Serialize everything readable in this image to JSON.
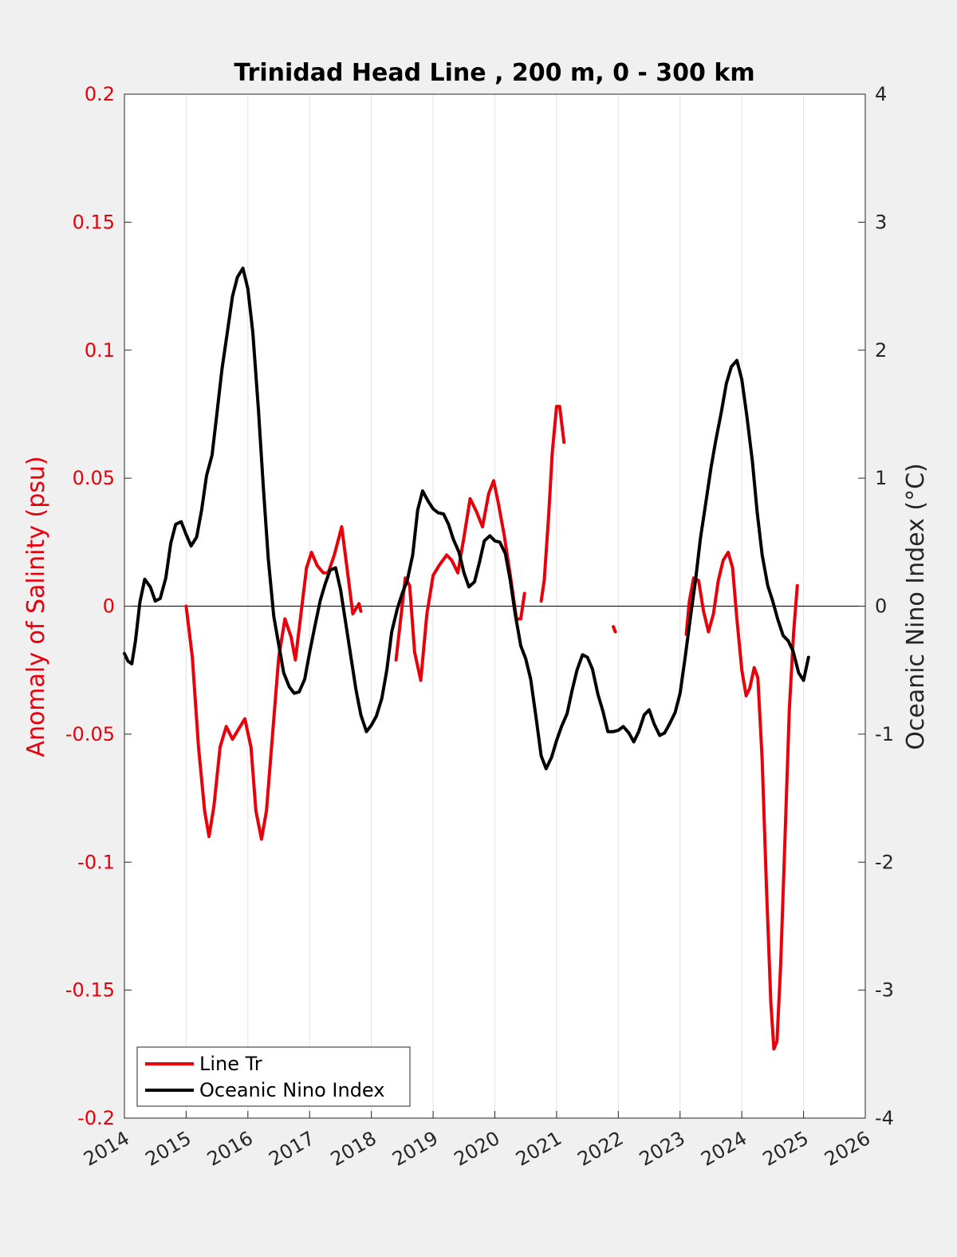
{
  "chart_data": {
    "type": "line",
    "title": "Trinidad Head Line , 200 m, 0 - 300 km",
    "ylabel_left": "Anomaly of Salinity (psu)",
    "ylabel_right": "Oceanic Nino Index (°C)",
    "xlim": [
      2014,
      2026
    ],
    "ylim_left": [
      -0.2,
      0.2
    ],
    "ylim_right": [
      -4,
      4
    ],
    "x_ticks": [
      "2014",
      "2015",
      "2016",
      "2017",
      "2018",
      "2019",
      "2020",
      "2021",
      "2022",
      "2023",
      "2024",
      "2025",
      "2026"
    ],
    "y_left_ticks": [
      "0.2",
      "0.15",
      "0.1",
      "0.05",
      "0",
      "-0.05",
      "-0.1",
      "-0.15",
      "-0.2"
    ],
    "y_right_ticks": [
      "4",
      "3",
      "2",
      "1",
      "0",
      "-1",
      "-2",
      "-3",
      "-4"
    ],
    "grid": "vertical",
    "legend_location": "bottom-left",
    "colors": {
      "salinity": "#e8000b",
      "oni": "#000000",
      "left_axis": "#e8000b",
      "right_axis": "#262626"
    },
    "series": [
      {
        "name": "Line Tr",
        "axis": "left",
        "color": "#e8000b",
        "segments": [
          [
            [
              2015.0,
              0.0
            ],
            [
              2015.1,
              -0.02
            ],
            [
              2015.2,
              -0.055
            ],
            [
              2015.3,
              -0.08
            ],
            [
              2015.37,
              -0.09
            ],
            [
              2015.45,
              -0.078
            ],
            [
              2015.55,
              -0.055
            ],
            [
              2015.65,
              -0.047
            ],
            [
              2015.75,
              -0.052
            ],
            [
              2015.85,
              -0.048
            ],
            [
              2015.95,
              -0.044
            ],
            [
              2016.05,
              -0.055
            ],
            [
              2016.13,
              -0.08
            ],
            [
              2016.22,
              -0.091
            ],
            [
              2016.3,
              -0.08
            ],
            [
              2016.4,
              -0.05
            ],
            [
              2016.5,
              -0.02
            ],
            [
              2016.6,
              -0.005
            ],
            [
              2016.7,
              -0.012
            ],
            [
              2016.77,
              -0.021
            ],
            [
              2016.85,
              -0.005
            ],
            [
              2016.95,
              0.015
            ],
            [
              2017.03,
              0.021
            ],
            [
              2017.12,
              0.016
            ],
            [
              2017.22,
              0.013
            ],
            [
              2017.3,
              0.013
            ],
            [
              2017.4,
              0.02
            ],
            [
              2017.52,
              0.031
            ],
            [
              2017.6,
              0.016
            ],
            [
              2017.7,
              -0.003
            ],
            [
              2017.8,
              0.001
            ],
            [
              2017.83,
              -0.002
            ]
          ],
          [
            [
              2018.4,
              -0.021
            ],
            [
              2018.48,
              -0.004
            ],
            [
              2018.55,
              0.011
            ],
            [
              2018.62,
              0.008
            ],
            [
              2018.7,
              -0.018
            ],
            [
              2018.8,
              -0.029
            ],
            [
              2018.9,
              -0.003
            ],
            [
              2019.0,
              0.012
            ],
            [
              2019.1,
              0.016
            ],
            [
              2019.22,
              0.02
            ],
            [
              2019.3,
              0.018
            ],
            [
              2019.4,
              0.013
            ],
            [
              2019.5,
              0.027
            ],
            [
              2019.6,
              0.042
            ],
            [
              2019.7,
              0.037
            ],
            [
              2019.8,
              0.031
            ],
            [
              2019.9,
              0.044
            ],
            [
              2019.98,
              0.049
            ],
            [
              2020.05,
              0.041
            ],
            [
              2020.15,
              0.028
            ],
            [
              2020.25,
              0.012
            ],
            [
              2020.35,
              -0.005
            ],
            [
              2020.42,
              -0.005
            ],
            [
              2020.48,
              0.005
            ]
          ],
          [
            [
              2020.75,
              0.002
            ],
            [
              2020.8,
              0.01
            ],
            [
              2020.87,
              0.035
            ],
            [
              2020.93,
              0.06
            ],
            [
              2021.0,
              0.078
            ],
            [
              2021.05,
              0.078
            ],
            [
              2021.12,
              0.064
            ]
          ],
          [
            [
              2021.92,
              -0.008
            ],
            [
              2021.95,
              -0.01
            ]
          ],
          [
            [
              2023.1,
              -0.011
            ],
            [
              2023.15,
              0.002
            ],
            [
              2023.22,
              0.011
            ],
            [
              2023.3,
              0.01
            ],
            [
              2023.38,
              -0.002
            ],
            [
              2023.46,
              -0.01
            ],
            [
              2023.54,
              -0.003
            ],
            [
              2023.62,
              0.01
            ],
            [
              2023.7,
              0.018
            ],
            [
              2023.78,
              0.021
            ],
            [
              2023.85,
              0.015
            ],
            [
              2023.92,
              -0.005
            ],
            [
              2024.0,
              -0.025
            ],
            [
              2024.07,
              -0.035
            ],
            [
              2024.13,
              -0.032
            ],
            [
              2024.2,
              -0.024
            ],
            [
              2024.26,
              -0.028
            ],
            [
              2024.33,
              -0.06
            ],
            [
              2024.4,
              -0.11
            ],
            [
              2024.47,
              -0.155
            ],
            [
              2024.52,
              -0.173
            ],
            [
              2024.57,
              -0.17
            ],
            [
              2024.63,
              -0.14
            ],
            [
              2024.7,
              -0.09
            ],
            [
              2024.77,
              -0.04
            ],
            [
              2024.84,
              -0.01
            ],
            [
              2024.9,
              0.008
            ]
          ]
        ]
      },
      {
        "name": "Oceanic Nino Index",
        "axis": "right",
        "color": "#000000",
        "segments": [
          [
            [
              2014.0,
              -0.37
            ],
            [
              2014.06,
              -0.43
            ],
            [
              2014.12,
              -0.45
            ],
            [
              2014.18,
              -0.27
            ],
            [
              2014.25,
              0.03
            ],
            [
              2014.33,
              0.21
            ],
            [
              2014.42,
              0.15
            ],
            [
              2014.5,
              0.04
            ],
            [
              2014.58,
              0.06
            ],
            [
              2014.67,
              0.22
            ],
            [
              2014.75,
              0.49
            ],
            [
              2014.83,
              0.64
            ],
            [
              2014.92,
              0.66
            ],
            [
              2015.0,
              0.56
            ],
            [
              2015.08,
              0.47
            ],
            [
              2015.17,
              0.54
            ],
            [
              2015.25,
              0.75
            ],
            [
              2015.33,
              1.02
            ],
            [
              2015.42,
              1.18
            ],
            [
              2015.5,
              1.51
            ],
            [
              2015.58,
              1.85
            ],
            [
              2015.67,
              2.15
            ],
            [
              2015.75,
              2.42
            ],
            [
              2015.83,
              2.57
            ],
            [
              2015.92,
              2.64
            ],
            [
              2016.0,
              2.48
            ],
            [
              2016.08,
              2.14
            ],
            [
              2016.17,
              1.54
            ],
            [
              2016.25,
              0.93
            ],
            [
              2016.33,
              0.37
            ],
            [
              2016.42,
              -0.08
            ],
            [
              2016.5,
              -0.3
            ],
            [
              2016.58,
              -0.52
            ],
            [
              2016.67,
              -0.63
            ],
            [
              2016.75,
              -0.68
            ],
            [
              2016.83,
              -0.67
            ],
            [
              2016.92,
              -0.57
            ],
            [
              2017.0,
              -0.36
            ],
            [
              2017.08,
              -0.17
            ],
            [
              2017.17,
              0.04
            ],
            [
              2017.25,
              0.17
            ],
            [
              2017.33,
              0.28
            ],
            [
              2017.42,
              0.3
            ],
            [
              2017.5,
              0.13
            ],
            [
              2017.58,
              -0.12
            ],
            [
              2017.67,
              -0.4
            ],
            [
              2017.75,
              -0.65
            ],
            [
              2017.83,
              -0.85
            ],
            [
              2017.92,
              -0.98
            ],
            [
              2018.0,
              -0.93
            ],
            [
              2018.08,
              -0.86
            ],
            [
              2018.17,
              -0.72
            ],
            [
              2018.25,
              -0.5
            ],
            [
              2018.33,
              -0.2
            ],
            [
              2018.42,
              -0.02
            ],
            [
              2018.5,
              0.1
            ],
            [
              2018.58,
              0.2
            ],
            [
              2018.67,
              0.4
            ],
            [
              2018.75,
              0.75
            ],
            [
              2018.83,
              0.9
            ],
            [
              2018.92,
              0.82
            ],
            [
              2019.0,
              0.76
            ],
            [
              2019.08,
              0.73
            ],
            [
              2019.17,
              0.72
            ],
            [
              2019.25,
              0.64
            ],
            [
              2019.33,
              0.52
            ],
            [
              2019.42,
              0.42
            ],
            [
              2019.5,
              0.26
            ],
            [
              2019.58,
              0.15
            ],
            [
              2019.67,
              0.19
            ],
            [
              2019.75,
              0.34
            ],
            [
              2019.83,
              0.51
            ],
            [
              2019.92,
              0.55
            ],
            [
              2020.0,
              0.51
            ],
            [
              2020.08,
              0.5
            ],
            [
              2020.17,
              0.41
            ],
            [
              2020.25,
              0.2
            ],
            [
              2020.33,
              -0.06
            ],
            [
              2020.42,
              -0.31
            ],
            [
              2020.5,
              -0.41
            ],
            [
              2020.58,
              -0.57
            ],
            [
              2020.67,
              -0.88
            ],
            [
              2020.75,
              -1.17
            ],
            [
              2020.83,
              -1.27
            ],
            [
              2020.92,
              -1.18
            ],
            [
              2021.0,
              -1.05
            ],
            [
              2021.08,
              -0.94
            ],
            [
              2021.17,
              -0.84
            ],
            [
              2021.25,
              -0.66
            ],
            [
              2021.33,
              -0.5
            ],
            [
              2021.42,
              -0.38
            ],
            [
              2021.5,
              -0.4
            ],
            [
              2021.58,
              -0.49
            ],
            [
              2021.67,
              -0.69
            ],
            [
              2021.75,
              -0.82
            ],
            [
              2021.83,
              -0.98
            ],
            [
              2021.92,
              -0.98
            ],
            [
              2022.0,
              -0.97
            ],
            [
              2022.08,
              -0.94
            ],
            [
              2022.17,
              -0.99
            ],
            [
              2022.25,
              -1.06
            ],
            [
              2022.33,
              -0.98
            ],
            [
              2022.42,
              -0.85
            ],
            [
              2022.5,
              -0.81
            ],
            [
              2022.58,
              -0.92
            ],
            [
              2022.67,
              -1.01
            ],
            [
              2022.75,
              -0.99
            ],
            [
              2022.83,
              -0.92
            ],
            [
              2022.92,
              -0.83
            ],
            [
              2023.0,
              -0.68
            ],
            [
              2023.08,
              -0.41
            ],
            [
              2023.17,
              -0.08
            ],
            [
              2023.25,
              0.2
            ],
            [
              2023.33,
              0.53
            ],
            [
              2023.42,
              0.82
            ],
            [
              2023.5,
              1.08
            ],
            [
              2023.58,
              1.3
            ],
            [
              2023.67,
              1.52
            ],
            [
              2023.75,
              1.74
            ],
            [
              2023.83,
              1.87
            ],
            [
              2023.92,
              1.92
            ],
            [
              2024.0,
              1.77
            ],
            [
              2024.08,
              1.49
            ],
            [
              2024.17,
              1.14
            ],
            [
              2024.25,
              0.73
            ],
            [
              2024.33,
              0.4
            ],
            [
              2024.42,
              0.16
            ],
            [
              2024.5,
              0.04
            ],
            [
              2024.58,
              -0.1
            ],
            [
              2024.67,
              -0.23
            ],
            [
              2024.75,
              -0.27
            ],
            [
              2024.83,
              -0.35
            ],
            [
              2024.92,
              -0.52
            ],
            [
              2025.0,
              -0.58
            ],
            [
              2025.08,
              -0.4
            ]
          ]
        ]
      }
    ]
  }
}
